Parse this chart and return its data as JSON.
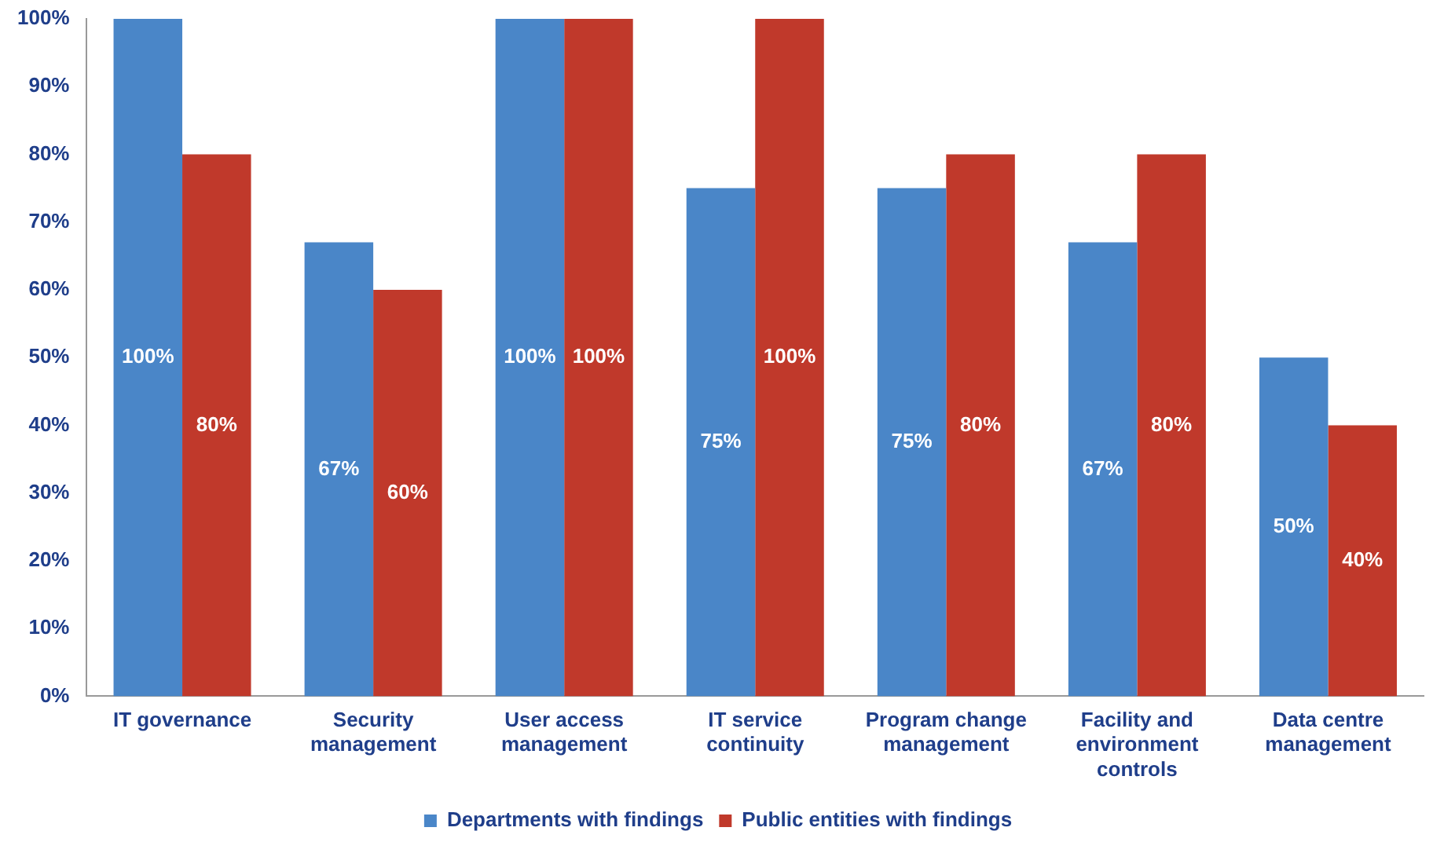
{
  "chart_data": {
    "type": "bar",
    "categories": [
      "IT governance",
      "Security management",
      "User access management",
      "IT service continuity",
      "Program change management",
      "Facility and environment controls",
      "Data centre management"
    ],
    "series": [
      {
        "name": "Departments with findings",
        "color": "#4a86c8",
        "values": [
          100,
          67,
          100,
          75,
          75,
          67,
          50
        ],
        "value_labels": [
          "100%",
          "67%",
          "100%",
          "75%",
          "75%",
          "67%",
          "50%"
        ]
      },
      {
        "name": "Public entities with findings",
        "color": "#c0392b",
        "values": [
          80,
          60,
          100,
          100,
          80,
          80,
          40
        ],
        "value_labels": [
          "80%",
          "60%",
          "100%",
          "100%",
          "80%",
          "80%",
          "40%"
        ]
      }
    ],
    "ylim": [
      0,
      100
    ],
    "yticks": [
      {
        "value": 0,
        "label": "0%"
      },
      {
        "value": 10,
        "label": "10%"
      },
      {
        "value": 20,
        "label": "20%"
      },
      {
        "value": 30,
        "label": "30%"
      },
      {
        "value": 40,
        "label": "40%"
      },
      {
        "value": 50,
        "label": "50%"
      },
      {
        "value": 60,
        "label": "60%"
      },
      {
        "value": 70,
        "label": "70%"
      },
      {
        "value": 80,
        "label": "80%"
      },
      {
        "value": 90,
        "label": "90%"
      },
      {
        "value": 100,
        "label": "100%"
      }
    ],
    "grid": false,
    "legend": "bottom"
  }
}
